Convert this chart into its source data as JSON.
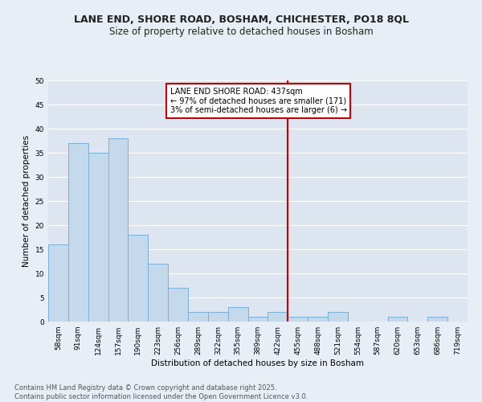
{
  "title": "LANE END, SHORE ROAD, BOSHAM, CHICHESTER, PO18 8QL",
  "subtitle": "Size of property relative to detached houses in Bosham",
  "xlabel": "Distribution of detached houses by size in Bosham",
  "ylabel": "Number of detached properties",
  "categories": [
    "58sqm",
    "91sqm",
    "124sqm",
    "157sqm",
    "190sqm",
    "223sqm",
    "256sqm",
    "289sqm",
    "322sqm",
    "355sqm",
    "389sqm",
    "422sqm",
    "455sqm",
    "488sqm",
    "521sqm",
    "554sqm",
    "587sqm",
    "620sqm",
    "653sqm",
    "686sqm",
    "719sqm"
  ],
  "values": [
    16,
    37,
    35,
    38,
    18,
    12,
    7,
    2,
    2,
    3,
    1,
    2,
    1,
    1,
    2,
    0,
    0,
    1,
    0,
    1,
    0
  ],
  "bar_color": "#c5d9ed",
  "bar_edge_color": "#7aafd4",
  "vline_color": "#cc0000",
  "vline_label_title": "LANE END SHORE ROAD: 437sqm",
  "vline_label_line2": "← 97% of detached houses are smaller (171)",
  "vline_label_line3": "3% of semi-detached houses are larger (6) →",
  "annotation_box_color": "#cc0000",
  "ylim": [
    0,
    50
  ],
  "yticks": [
    0,
    5,
    10,
    15,
    20,
    25,
    30,
    35,
    40,
    45,
    50
  ],
  "background_color": "#e8eef5",
  "plot_bg_color": "#dde6f0",
  "grid_color": "#ffffff",
  "footer_line1": "Contains HM Land Registry data © Crown copyright and database right 2025.",
  "footer_line2": "Contains public sector information licensed under the Open Government Licence v3.0.",
  "title_fontsize": 9,
  "subtitle_fontsize": 8.5,
  "axis_label_fontsize": 7.5,
  "tick_fontsize": 6.5,
  "footer_fontsize": 6,
  "annot_fontsize": 7
}
